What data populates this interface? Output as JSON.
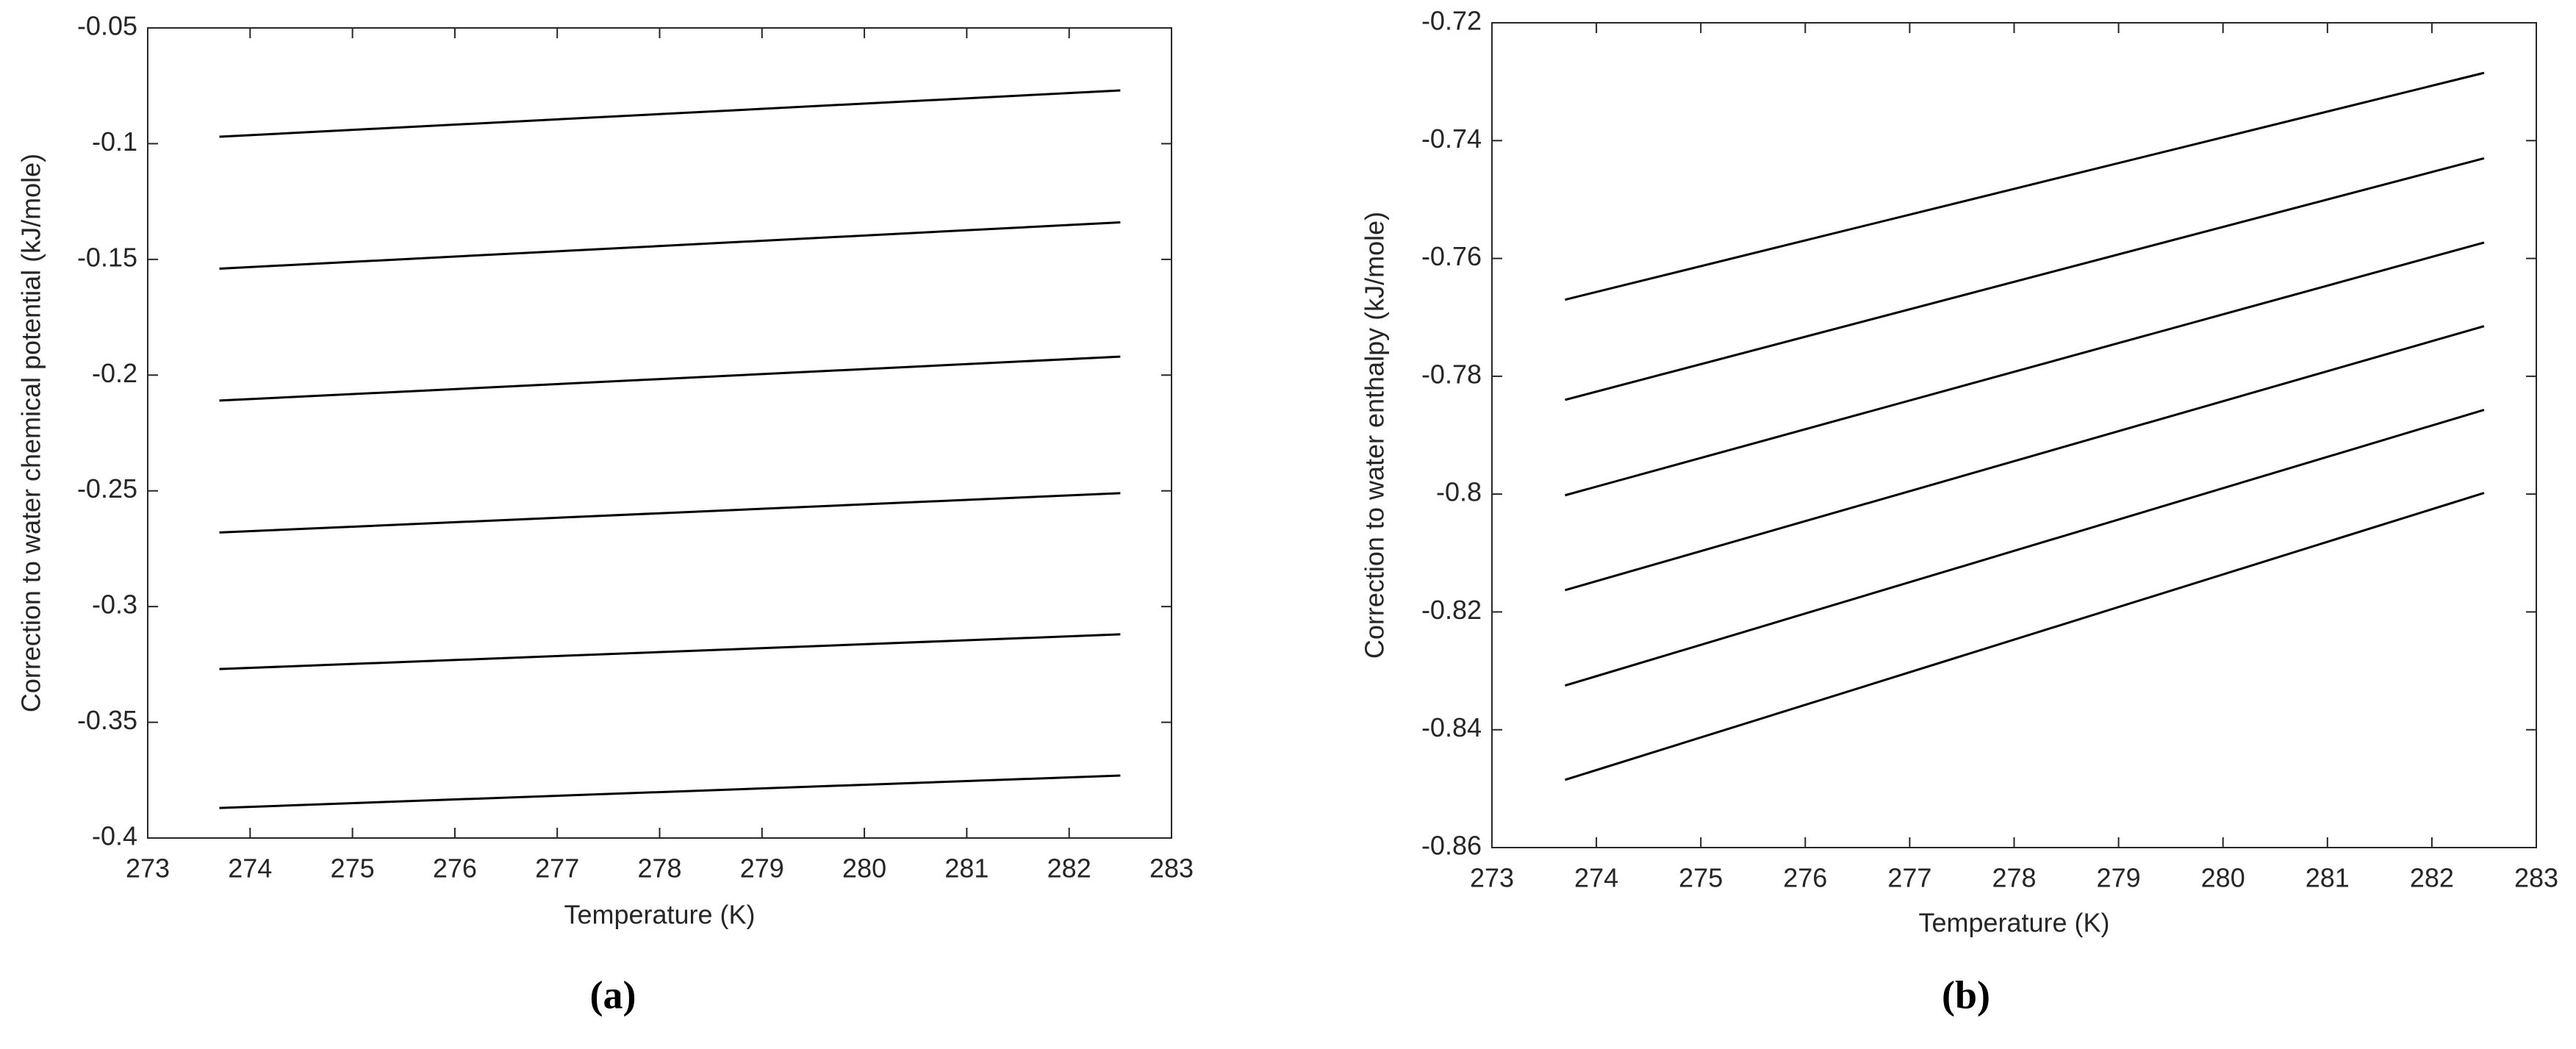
{
  "chart_data": [
    {
      "type": "line",
      "label": "(a)",
      "x_label": "Temperature (K)",
      "y_label": "Correction to water chemical potential (kJ/mole)",
      "x": [
        273.7,
        282.5
      ],
      "color": "#000000",
      "series": [
        {
          "values": [
            -0.097,
            -0.077
          ]
        },
        {
          "values": [
            -0.154,
            -0.134
          ]
        },
        {
          "values": [
            -0.211,
            -0.192
          ]
        },
        {
          "values": [
            -0.268,
            -0.251
          ]
        },
        {
          "values": [
            -0.327,
            -0.312
          ]
        },
        {
          "values": [
            -0.387,
            -0.373
          ]
        }
      ],
      "xlim": [
        273,
        283
      ],
      "xticks": [
        273,
        274,
        275,
        276,
        277,
        278,
        279,
        280,
        281,
        282,
        283
      ],
      "ylim": [
        -0.4,
        -0.05
      ],
      "yticks": [
        -0.4,
        -0.35,
        -0.3,
        -0.25,
        -0.2,
        -0.15,
        -0.1,
        -0.05
      ]
    },
    {
      "type": "line",
      "label": "(b)",
      "x_label": "Temperature (K)",
      "y_label": "Correction to water enthalpy (kJ/mole)",
      "x": [
        273.7,
        282.5
      ],
      "color": "#000000",
      "series": [
        {
          "values": [
            -0.767,
            -0.7285
          ]
        },
        {
          "values": [
            -0.784,
            -0.743
          ]
        },
        {
          "values": [
            -0.8002,
            -0.7573
          ]
        },
        {
          "values": [
            -0.8163,
            -0.7715
          ]
        },
        {
          "values": [
            -0.8325,
            -0.7857
          ]
        },
        {
          "values": [
            -0.8485,
            -0.7998
          ]
        }
      ],
      "xlim": [
        273,
        283
      ],
      "xticks": [
        273,
        274,
        275,
        276,
        277,
        278,
        279,
        280,
        281,
        282,
        283
      ],
      "ylim": [
        -0.86,
        -0.72
      ],
      "yticks": [
        -0.86,
        -0.84,
        -0.82,
        -0.8,
        -0.78,
        -0.76,
        -0.74,
        -0.72
      ]
    }
  ]
}
